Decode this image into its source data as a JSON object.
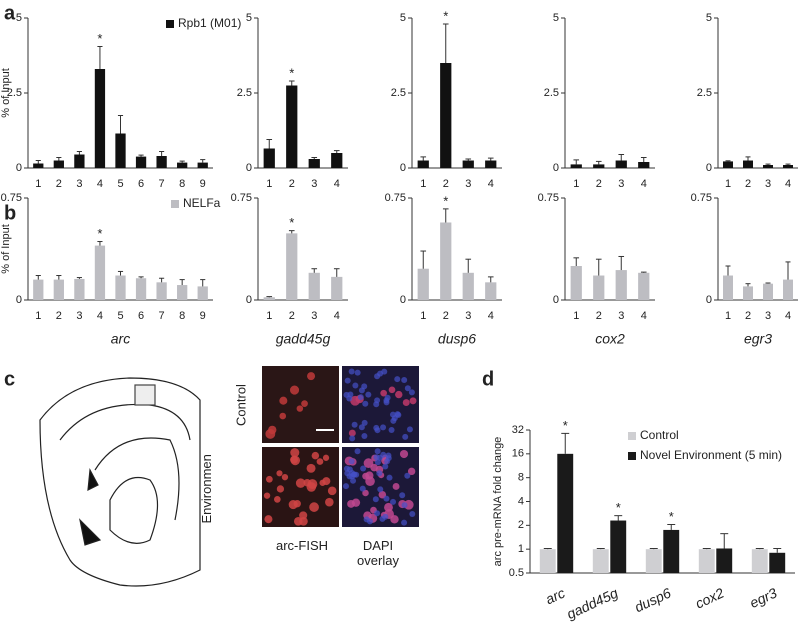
{
  "panels": [
    "a",
    "b",
    "c",
    "d"
  ],
  "panel_c": {
    "row_labels": [
      "Control",
      "Novel Environment"
    ],
    "column_labels": [
      "arc-FISH",
      "DAPI overlay"
    ]
  },
  "chart_data": [
    {
      "type": "bar",
      "ylabel": "% of Input",
      "categories": [
        "1",
        "2",
        "3",
        "4",
        "5",
        "6",
        "7",
        "8",
        "9"
      ],
      "ylim": [
        0,
        5
      ],
      "yticks": [
        0,
        2.5,
        5
      ],
      "legend": "upper right",
      "series": [
        {
          "name": "Rpb1 (M01)",
          "color": "#111111",
          "values": [
            0.15,
            0.25,
            0.45,
            3.3,
            1.15,
            0.38,
            0.4,
            0.18,
            0.18
          ],
          "errors": [
            0.1,
            0.1,
            0.1,
            0.75,
            0.6,
            0.05,
            0.15,
            0.05,
            0.1
          ],
          "significance": [
            null,
            null,
            null,
            "*",
            null,
            null,
            null,
            null,
            null
          ]
        }
      ]
    },
    {
      "type": "bar",
      "categories": [
        "1",
        "2",
        "3",
        "4"
      ],
      "ylim": [
        0,
        5
      ],
      "yticks": [
        0,
        2.5,
        5
      ],
      "series": [
        {
          "color": "#111111",
          "values": [
            0.65,
            2.75,
            0.3,
            0.5
          ],
          "errors": [
            0.3,
            0.15,
            0.05,
            0.08
          ],
          "significance": [
            null,
            "*",
            null,
            null
          ]
        }
      ]
    },
    {
      "type": "bar",
      "categories": [
        "1",
        "2",
        "3",
        "4"
      ],
      "ylim": [
        0,
        5
      ],
      "yticks": [
        0,
        2.5,
        5
      ],
      "series": [
        {
          "color": "#111111",
          "values": [
            0.25,
            3.5,
            0.25,
            0.25
          ],
          "errors": [
            0.12,
            1.3,
            0.05,
            0.08
          ],
          "significance": [
            null,
            "*",
            null,
            null
          ]
        }
      ]
    },
    {
      "type": "bar",
      "categories": [
        "1",
        "2",
        "3",
        "4"
      ],
      "ylim": [
        0,
        5
      ],
      "yticks": [
        0,
        2.5,
        5
      ],
      "series": [
        {
          "color": "#111111",
          "values": [
            0.12,
            0.12,
            0.25,
            0.2
          ],
          "errors": [
            0.15,
            0.1,
            0.2,
            0.15
          ]
        }
      ]
    },
    {
      "type": "bar",
      "categories": [
        "1",
        "2",
        "3",
        "4"
      ],
      "ylim": [
        0,
        5
      ],
      "yticks": [
        0,
        2.5,
        5
      ],
      "series": [
        {
          "color": "#111111",
          "values": [
            0.22,
            0.25,
            0.1,
            0.1
          ],
          "errors": [
            0.02,
            0.12,
            0.03,
            0.03
          ]
        }
      ]
    },
    {
      "type": "bar",
      "ylabel": "% of Input",
      "xlabel": "arc",
      "xlabel_color": "#1ab3d8",
      "categories": [
        "1",
        "2",
        "3",
        "4",
        "5",
        "6",
        "7",
        "8",
        "9"
      ],
      "ylim": [
        0,
        0.75
      ],
      "yticks": [
        0,
        0.75
      ],
      "legend": "upper right",
      "series": [
        {
          "name": "NELFa",
          "color": "#bdbdc2",
          "values": [
            0.15,
            0.15,
            0.155,
            0.4,
            0.18,
            0.16,
            0.13,
            0.11,
            0.1
          ],
          "errors": [
            0.03,
            0.03,
            0.01,
            0.03,
            0.03,
            0.01,
            0.03,
            0.04,
            0.05
          ],
          "significance": [
            null,
            null,
            null,
            "*",
            null,
            null,
            null,
            null,
            null
          ]
        }
      ]
    },
    {
      "type": "bar",
      "xlabel": "gadd45g",
      "xlabel_color": "#1ab3d8",
      "categories": [
        "1",
        "2",
        "3",
        "4"
      ],
      "ylim": [
        0,
        0.75
      ],
      "yticks": [
        0,
        0.75
      ],
      "series": [
        {
          "color": "#bdbdc2",
          "values": [
            0.02,
            0.49,
            0.2,
            0.17
          ],
          "errors": [
            0.005,
            0.02,
            0.03,
            0.06
          ],
          "significance": [
            null,
            "*",
            null,
            null
          ]
        }
      ]
    },
    {
      "type": "bar",
      "xlabel": "dusp6",
      "xlabel_color": "#1ab3d8",
      "categories": [
        "1",
        "2",
        "3",
        "4"
      ],
      "ylim": [
        0,
        0.75
      ],
      "yticks": [
        0,
        0.75
      ],
      "series": [
        {
          "color": "#bdbdc2",
          "values": [
            0.23,
            0.57,
            0.2,
            0.13
          ],
          "errors": [
            0.13,
            0.1,
            0.1,
            0.04
          ],
          "significance": [
            null,
            "*",
            null,
            null
          ]
        }
      ]
    },
    {
      "type": "bar",
      "xlabel": "cox2",
      "xlabel_color": "#e0202a",
      "categories": [
        "1",
        "2",
        "3",
        "4"
      ],
      "ylim": [
        0,
        0.75
      ],
      "yticks": [
        0,
        0.75
      ],
      "series": [
        {
          "color": "#bdbdc2",
          "values": [
            0.25,
            0.18,
            0.22,
            0.2
          ],
          "errors": [
            0.06,
            0.12,
            0.1,
            0.005
          ]
        }
      ]
    },
    {
      "type": "bar",
      "xlabel": "egr3",
      "xlabel_color": "#e0202a",
      "categories": [
        "1",
        "2",
        "3",
        "4"
      ],
      "ylim": [
        0,
        0.75
      ],
      "yticks": [
        0,
        0.75
      ],
      "series": [
        {
          "color": "#bdbdc2",
          "values": [
            0.18,
            0.1,
            0.12,
            0.15
          ],
          "errors": [
            0.07,
            0.02,
            0.005,
            0.13
          ]
        }
      ]
    },
    {
      "type": "bar",
      "ylabel": "arc pre-mRNA fold change",
      "log_scale": true,
      "categories": [
        "arc",
        "gadd45g",
        "dusp6",
        "cox2",
        "egr3"
      ],
      "category_colors": [
        "#1ab3d8",
        "#1ab3d8",
        "#1ab3d8",
        "#e0202a",
        "#e0202a"
      ],
      "ylim": [
        0.5,
        32
      ],
      "yticks": [
        0.5,
        1,
        2,
        4,
        8,
        16,
        32
      ],
      "legend": "upper right",
      "series": [
        {
          "name": "Control",
          "color": "#cfcfd2",
          "values": [
            1,
            1,
            1,
            1,
            1
          ],
          "errors": [
            0.02,
            0.02,
            0.02,
            0.02,
            0.02
          ]
        },
        {
          "name": "Novel Environment (5 min)",
          "color": "#1a1a1a",
          "values": [
            16,
            2.3,
            1.75,
            1.02,
            0.9
          ],
          "errors": [
            13,
            0.35,
            0.3,
            0.55,
            0.12
          ],
          "significance": [
            "*",
            "*",
            "*",
            null,
            null
          ]
        }
      ]
    }
  ]
}
